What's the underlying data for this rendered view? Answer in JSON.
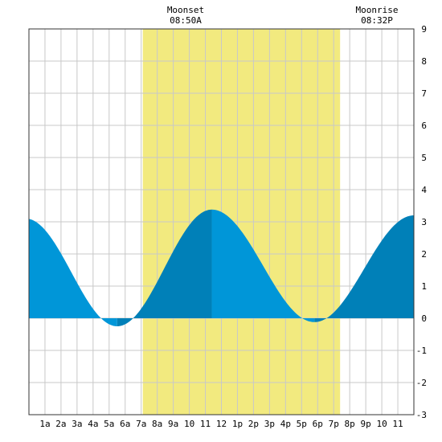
{
  "chart_data": {
    "type": "area",
    "header_labels": [
      {
        "name": "Moonset",
        "time": "08:50A",
        "hour": 8.83
      },
      {
        "name": "Moonrise",
        "time": "08:32P",
        "hour": 20.53
      }
    ],
    "x_tick_labels": [
      "1a",
      "2a",
      "3a",
      "4a",
      "5a",
      "6a",
      "7a",
      "8a",
      "9a",
      "10",
      "11",
      "12",
      "1p",
      "2p",
      "3p",
      "4p",
      "5p",
      "6p",
      "7p",
      "8p",
      "9p",
      "10",
      "11"
    ],
    "x_ticks_hours": [
      1,
      2,
      3,
      4,
      5,
      6,
      7,
      8,
      9,
      10,
      11,
      12,
      13,
      14,
      15,
      16,
      17,
      18,
      19,
      20,
      21,
      22,
      23
    ],
    "xlim_hours": [
      0,
      24
    ],
    "y_tick_labels": [
      "9",
      "8",
      "7",
      "6",
      "5",
      "4",
      "3",
      "2",
      "1",
      "0",
      "-1",
      "-2",
      "-3"
    ],
    "ylim": [
      -3,
      9
    ],
    "grid": true,
    "daylight_hours": [
      7.1,
      19.4
    ],
    "extrema": [
      {
        "type": "high",
        "hour": -0.2,
        "value": 3.1
      },
      {
        "type": "low",
        "hour": 5.5,
        "value": -0.25
      },
      {
        "type": "high",
        "hour": 11.4,
        "value": 3.38
      },
      {
        "type": "low",
        "hour": 17.8,
        "value": -0.12
      },
      {
        "type": "high",
        "hour": 24.0,
        "value": 3.2
      }
    ],
    "colors": {
      "rising": "#0080b8",
      "falling": "#0096d8",
      "daylight": "#f2ea7f",
      "grid": "#c8c8c8",
      "border": "#333333"
    }
  }
}
